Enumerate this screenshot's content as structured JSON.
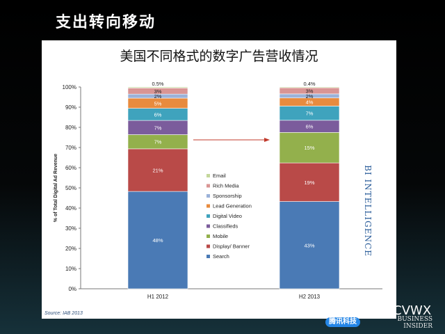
{
  "slide": {
    "title": "支出转向移动",
    "chart_title": "美国不同格式的数字广告营收情况",
    "source": "Source: IAB 2013",
    "brand_vertical": "BI INTELLIGENCE",
    "publisher_line1": "BUSINESS",
    "publisher_line2": "INSIDER",
    "wechat_text": "微信号: ZXCVWX",
    "tencent_logo_text": "腾讯科技"
  },
  "chart_data": {
    "type": "bar",
    "stacked": true,
    "categories": [
      "H1 2012",
      "H2 2013"
    ],
    "ylabel": "% of Total Digital Ad Revenue",
    "ylim": [
      0,
      100
    ],
    "yticks": [
      "0%",
      "10%",
      "20%",
      "30%",
      "40%",
      "50%",
      "60%",
      "70%",
      "80%",
      "90%",
      "100%"
    ],
    "grid": false,
    "legend_position": "center",
    "series": [
      {
        "name": "Search",
        "color": "#4a7ab5",
        "values": [
          48,
          43
        ],
        "labels": [
          "48%",
          "43%"
        ]
      },
      {
        "name": "Display/ Banner",
        "color": "#b94a48",
        "values": [
          21,
          19
        ],
        "labels": [
          "21%",
          "19%"
        ]
      },
      {
        "name": "Mobile",
        "color": "#93b04c",
        "values": [
          7,
          15
        ],
        "labels": [
          "7%",
          "15%"
        ]
      },
      {
        "name": "Classifieds",
        "color": "#7b5c9c",
        "values": [
          7,
          6
        ],
        "labels": [
          "7%",
          "6%"
        ]
      },
      {
        "name": "Digital Video",
        "color": "#3fa3bd",
        "values": [
          6,
          7
        ],
        "labels": [
          "6%",
          "7%"
        ]
      },
      {
        "name": "Lead Generation",
        "color": "#e88b3e",
        "values": [
          5,
          4
        ],
        "labels": [
          "5%",
          "4%"
        ]
      },
      {
        "name": "Sponsorship",
        "color": "#9bb2d9",
        "values": [
          2,
          2
        ],
        "labels": [
          "2%",
          "2%"
        ]
      },
      {
        "name": "Rich Media",
        "color": "#d99594",
        "values": [
          3,
          3
        ],
        "labels": [
          "3%",
          "3%"
        ]
      },
      {
        "name": "Email",
        "color": "#c4d79b",
        "values": [
          0.5,
          0.4
        ],
        "labels": [
          "0.5%",
          "0.4%"
        ]
      }
    ],
    "legend_order": [
      "Email",
      "Rich Media",
      "Sponsorship",
      "Lead Generation",
      "Digital Video",
      "Classifieds",
      "Mobile",
      "Display/ Banner",
      "Search"
    ],
    "annotations": [
      {
        "type": "arrow",
        "from": "H1 2012",
        "to": "H2 2013",
        "color": "#c0392b"
      }
    ]
  }
}
